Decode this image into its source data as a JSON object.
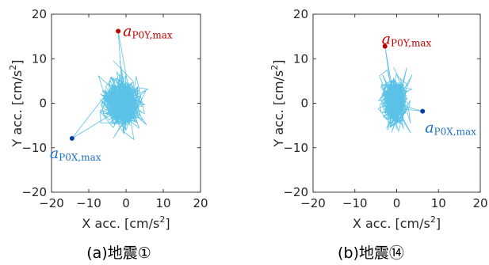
{
  "chart_data": [
    {
      "type": "line",
      "caption": "(a)地震①",
      "xlabel": "X acc. [cm/s",
      "xlabel_sup": "2",
      "xlabel_end": "]",
      "ylabel": "Y acc. [cm/s",
      "ylabel_sup": "2",
      "ylabel_end": "]",
      "xlim": [
        -20,
        20
      ],
      "ylim": [
        -20,
        20
      ],
      "xticks": [
        -20,
        -10,
        0,
        10,
        20
      ],
      "yticks": [
        -20,
        -10,
        0,
        10,
        20
      ],
      "xtick_labels": [
        "−20",
        "−10",
        "0",
        "10",
        "20"
      ],
      "ytick_labels": [
        "−20",
        "−10",
        "0",
        "10",
        "20"
      ],
      "trace_color": "#5bc2e7",
      "orbit": {
        "center": [
          -1,
          0
        ],
        "sigma": [
          3.2,
          3.4
        ],
        "reach": [
          10,
          12
        ]
      },
      "points": [
        {
          "name": "a_P0Y,max",
          "symbol": "a",
          "sub": "P0Y,max",
          "x": -2.1,
          "y": 16.2,
          "color": "#c00000",
          "label_pos": "right"
        },
        {
          "name": "a_P0X,max",
          "symbol": "a",
          "sub": "P0X,max",
          "x": -14.5,
          "y": -7.9,
          "color": "#0b3aa6",
          "label_color": "#1f6fc0",
          "label_pos": "below"
        }
      ]
    },
    {
      "type": "line",
      "caption": "(b)地震⑭",
      "xlabel": "X acc. [cm/s",
      "xlabel_sup": "2",
      "xlabel_end": "]",
      "ylabel": "Y acc. [cm/s",
      "ylabel_sup": "2",
      "ylabel_end": "]",
      "xlim": [
        -20,
        20
      ],
      "ylim": [
        -20,
        20
      ],
      "xticks": [
        -20,
        -10,
        0,
        10,
        20
      ],
      "yticks": [
        -20,
        -10,
        0,
        10,
        20
      ],
      "xtick_labels": [
        "−20",
        "−10",
        "0",
        "10",
        "20"
      ],
      "ytick_labels": [
        "−20",
        "−10",
        "0",
        "10",
        "20"
      ],
      "trace_color": "#5bc2e7",
      "orbit": {
        "center": [
          -0.5,
          0.3
        ],
        "sigma": [
          1.9,
          3.2
        ],
        "reach": [
          5.5,
          12
        ]
      },
      "points": [
        {
          "name": "a_P0Y,max",
          "symbol": "a",
          "sub": "P0Y,max",
          "x": -2.8,
          "y": 12.8,
          "color": "#c00000",
          "label_pos": "above-right"
        },
        {
          "name": "a_P0X,max",
          "symbol": "a",
          "sub": "P0X,max",
          "x": 6.2,
          "y": -1.8,
          "color": "#0b3aa6",
          "label_color": "#1f6fc0",
          "label_pos": "below-right"
        }
      ]
    }
  ]
}
